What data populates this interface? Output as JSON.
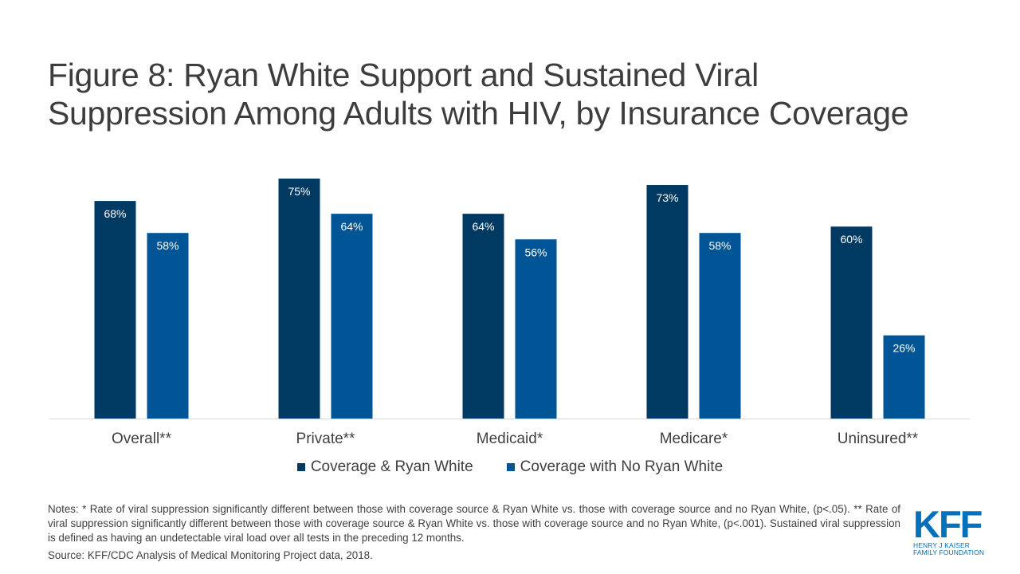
{
  "title": {
    "line1": "Figure 8: Ryan White Support and Sustained Viral",
    "line2": "Suppression Among Adults with HIV, by Insurance Coverage"
  },
  "colors": {
    "series1": "#003a63",
    "series2": "#005596",
    "axis": "#d9d9d9",
    "label_text": "#ffffff",
    "logo": "#0071bc"
  },
  "chart_data": {
    "type": "bar",
    "categories": [
      "Overall**",
      "Private**",
      "Medicaid*",
      "Medicare*",
      "Uninsured**"
    ],
    "series": [
      {
        "name": "Coverage & Ryan White",
        "values": [
          68,
          75,
          64,
          73,
          60
        ]
      },
      {
        "name": "Coverage with No Ryan White",
        "values": [
          58,
          64,
          56,
          58,
          26
        ]
      }
    ],
    "data_labels": [
      [
        "68%",
        "75%",
        "64%",
        "73%",
        "60%"
      ],
      [
        "58%",
        "64%",
        "56%",
        "58%",
        "26%"
      ]
    ],
    "ylim": [
      0,
      75
    ],
    "grid": false,
    "legend_position": "bottom"
  },
  "notes": "Notes: * Rate of viral suppression significantly different between those with coverage source & Ryan White vs. those with coverage source and no Ryan White, (p<.05). ** Rate of viral suppression significantly different between those with coverage source & Ryan White vs. those with coverage source and no Ryan White, (p<.001). Sustained viral suppression is defined as having an undetectable viral load over all tests in the preceding 12 months.",
  "source": "Source: KFF/CDC Analysis of Medical Monitoring Project data, 2018.",
  "logo": {
    "mark": "KFF",
    "line1": "HENRY J KAISER",
    "line2": "FAMILY FOUNDATION"
  }
}
